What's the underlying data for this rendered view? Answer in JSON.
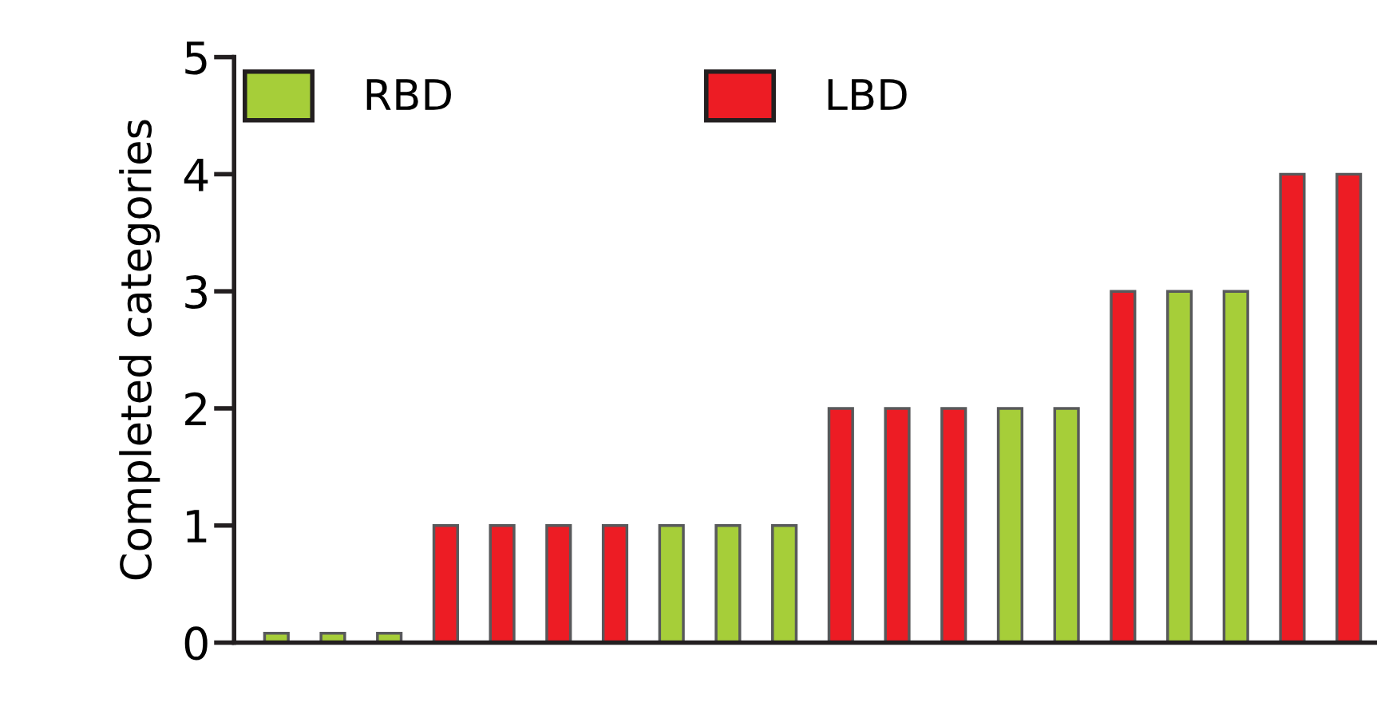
{
  "chart_data": {
    "type": "bar",
    "ylabel": "Completed categories",
    "categories": [
      null,
      null,
      null,
      null,
      null,
      null,
      null,
      null,
      null,
      null,
      null,
      null,
      null,
      null,
      null,
      null,
      null,
      null,
      null,
      null
    ],
    "series": [
      {
        "name": "RBD",
        "color": "#a6ce39",
        "values": [
          0.08,
          0.08,
          0.08,
          null,
          null,
          null,
          null,
          1,
          1,
          1,
          null,
          null,
          null,
          2,
          2,
          null,
          3,
          3,
          null,
          null
        ]
      },
      {
        "name": "LBD",
        "color": "#ed1c24",
        "values": [
          null,
          null,
          null,
          1,
          1,
          1,
          1,
          null,
          null,
          null,
          2,
          2,
          2,
          null,
          null,
          3,
          null,
          null,
          4,
          4
        ]
      }
    ],
    "ylim": [
      0,
      5
    ],
    "yticks": [
      0,
      1,
      2,
      3,
      4,
      5
    ],
    "grid": false,
    "legend": "top"
  }
}
